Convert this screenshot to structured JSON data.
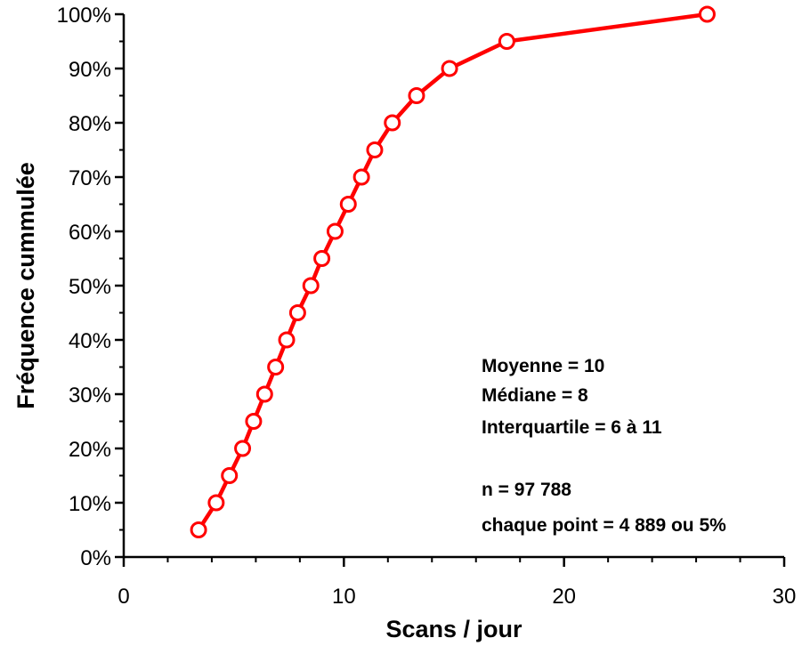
{
  "chart_data": {
    "type": "line",
    "xlabel": "Scans / jour",
    "ylabel": "Fréquence cummulée",
    "xlim": [
      0,
      30
    ],
    "ylim": [
      0,
      100
    ],
    "x_major_ticks": [
      0,
      10,
      20,
      30
    ],
    "x_minor_step": 2,
    "y_ticks": [
      0,
      10,
      20,
      30,
      40,
      50,
      60,
      70,
      80,
      90,
      100
    ],
    "y_tick_labels": [
      "0%",
      "10%",
      "20%",
      "30%",
      "40%",
      "50%",
      "60%",
      "70%",
      "80%",
      "90%",
      "100%"
    ],
    "grid": false,
    "series": [
      {
        "color": "#ff0000",
        "marker": "open-circle",
        "points": [
          {
            "x": 3.4,
            "y": 5
          },
          {
            "x": 4.2,
            "y": 10
          },
          {
            "x": 4.8,
            "y": 15
          },
          {
            "x": 5.4,
            "y": 20
          },
          {
            "x": 5.9,
            "y": 25
          },
          {
            "x": 6.4,
            "y": 30
          },
          {
            "x": 6.9,
            "y": 35
          },
          {
            "x": 7.4,
            "y": 40
          },
          {
            "x": 7.9,
            "y": 45
          },
          {
            "x": 8.5,
            "y": 50
          },
          {
            "x": 9.0,
            "y": 55
          },
          {
            "x": 9.6,
            "y": 60
          },
          {
            "x": 10.2,
            "y": 65
          },
          {
            "x": 10.8,
            "y": 70
          },
          {
            "x": 11.4,
            "y": 75
          },
          {
            "x": 12.2,
            "y": 80
          },
          {
            "x": 13.3,
            "y": 85
          },
          {
            "x": 14.8,
            "y": 90
          },
          {
            "x": 17.4,
            "y": 95
          },
          {
            "x": 26.5,
            "y": 100
          }
        ]
      }
    ],
    "annotations": [
      "Moyenne = 10",
      "Médiane = 8",
      "Interquartile = 6 à 11",
      "n = 97 788",
      "chaque point = 4 889 ou 5%"
    ]
  }
}
